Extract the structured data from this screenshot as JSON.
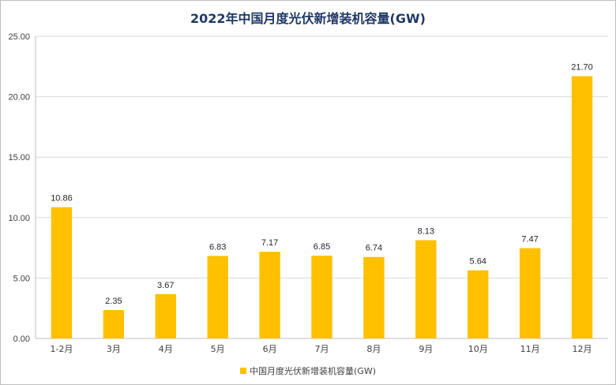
{
  "chart_data": {
    "type": "bar",
    "title": "2022年中国月度光伏新增装机容量(GW)",
    "categories": [
      "1-2月",
      "3月",
      "4月",
      "5月",
      "6月",
      "7月",
      "8月",
      "9月",
      "10月",
      "11月",
      "12月"
    ],
    "series": [
      {
        "name": "中国月度光伏新增装机容量(GW)",
        "values": [
          10.86,
          2.35,
          3.67,
          6.83,
          7.17,
          6.85,
          6.74,
          8.13,
          5.64,
          7.47,
          21.7
        ],
        "labels": [
          "10.86",
          "2.35",
          "3.67",
          "6.83",
          "7.17",
          "6.85",
          "6.74",
          "8.13",
          "5.64",
          "7.47",
          "21.70"
        ],
        "color": "#ffc000"
      }
    ],
    "yticks": [
      "0.00",
      "5.00",
      "10.00",
      "15.00",
      "20.00",
      "25.00"
    ],
    "ylim": [
      0,
      25
    ],
    "grid": true,
    "legend": "bottom"
  }
}
